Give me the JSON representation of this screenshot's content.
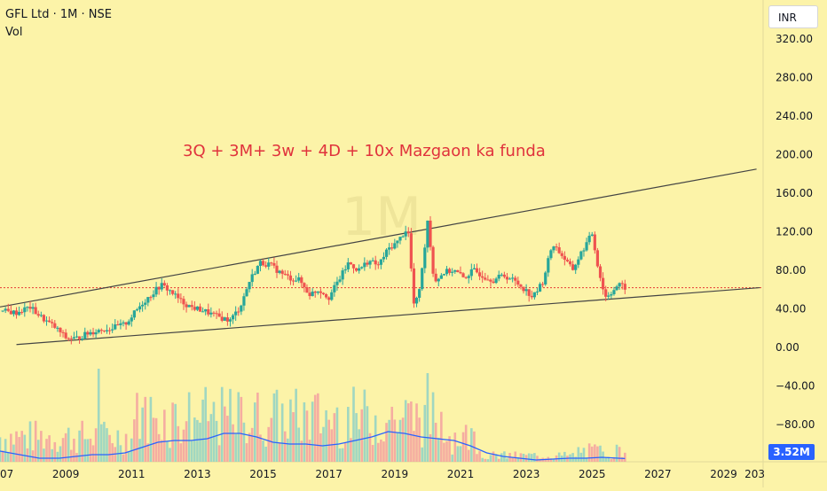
{
  "header": {
    "title": "GFL Ltd · 1M · NSE",
    "vol_label": "Vol",
    "currency": "INR",
    "watermark": "1M"
  },
  "annotation": "3Q + 3M+ 3w + 4D + 10x Mazgaon ka funda",
  "volume_badge": "3.52M",
  "colors": {
    "background": "#fcf3a8",
    "up": "#26a69a",
    "down": "#ef5350",
    "volume_ma": "#2962ff",
    "annotation": "#e0323c",
    "trendline": "#444444",
    "price_line": "#e53935"
  },
  "chart_data": {
    "type": "candlestick",
    "title": "GFL Ltd · 1M · NSE",
    "xlabel": "",
    "ylabel": "",
    "x_ticks": [
      "07",
      "2009",
      "2011",
      "2013",
      "2015",
      "2017",
      "2019",
      "2021",
      "2023",
      "2025",
      "2027",
      "2029",
      "203"
    ],
    "y_ticks": [
      "320.00",
      "280.00",
      "240.00",
      "200.00",
      "160.00",
      "120.00",
      "80.00",
      "40.00",
      "0.00",
      "−40.00",
      "−80.00"
    ],
    "y_range": [
      -100,
      340
    ],
    "x_range": [
      2007.0,
      2030.2
    ],
    "current_price": 62,
    "series_points": [
      [
        2007.0,
        38
      ],
      [
        2007.5,
        36
      ],
      [
        2007.9,
        42
      ],
      [
        2008.3,
        30
      ],
      [
        2008.7,
        20
      ],
      [
        2009.0,
        10
      ],
      [
        2009.3,
        9
      ],
      [
        2009.7,
        15
      ],
      [
        2010.0,
        18
      ],
      [
        2010.4,
        20
      ],
      [
        2010.8,
        24
      ],
      [
        2011.0,
        32
      ],
      [
        2011.3,
        45
      ],
      [
        2011.6,
        55
      ],
      [
        2011.9,
        65
      ],
      [
        2012.2,
        58
      ],
      [
        2012.5,
        48
      ],
      [
        2012.8,
        42
      ],
      [
        2013.2,
        38
      ],
      [
        2013.6,
        32
      ],
      [
        2014.0,
        28
      ],
      [
        2014.3,
        42
      ],
      [
        2014.6,
        70
      ],
      [
        2014.9,
        88
      ],
      [
        2015.2,
        86
      ],
      [
        2015.5,
        78
      ],
      [
        2015.8,
        72
      ],
      [
        2016.1,
        70
      ],
      [
        2016.4,
        55
      ],
      [
        2016.7,
        60
      ],
      [
        2017.0,
        52
      ],
      [
        2017.3,
        70
      ],
      [
        2017.6,
        88
      ],
      [
        2017.9,
        80
      ],
      [
        2018.2,
        90
      ],
      [
        2018.5,
        85
      ],
      [
        2018.8,
        102
      ],
      [
        2019.1,
        110
      ],
      [
        2019.4,
        125
      ],
      [
        2019.6,
        38
      ],
      [
        2019.8,
        70
      ],
      [
        2020.0,
        132
      ],
      [
        2020.2,
        68
      ],
      [
        2020.5,
        78
      ],
      [
        2020.8,
        80
      ],
      [
        2021.1,
        72
      ],
      [
        2021.4,
        80
      ],
      [
        2021.7,
        74
      ],
      [
        2022.0,
        70
      ],
      [
        2022.3,
        75
      ],
      [
        2022.6,
        70
      ],
      [
        2022.9,
        62
      ],
      [
        2023.2,
        52
      ],
      [
        2023.5,
        68
      ],
      [
        2023.8,
        108
      ],
      [
        2024.1,
        95
      ],
      [
        2024.4,
        80
      ],
      [
        2024.7,
        100
      ],
      [
        2025.0,
        118
      ],
      [
        2025.2,
        80
      ],
      [
        2025.4,
        52
      ],
      [
        2025.6,
        58
      ],
      [
        2025.8,
        65
      ],
      [
        2026.0,
        62
      ]
    ],
    "trendlines": [
      {
        "name": "upper",
        "points": [
          [
            2007.0,
            42
          ],
          [
            2030.0,
            185
          ]
        ]
      },
      {
        "name": "lower",
        "points": [
          [
            2007.5,
            3
          ],
          [
            2030.1,
            62
          ]
        ]
      }
    ],
    "volume_ma_points": [
      [
        2007.0,
        0.06
      ],
      [
        2007.6,
        0.04
      ],
      [
        2008.2,
        0.02
      ],
      [
        2008.8,
        0.02
      ],
      [
        2009.3,
        0.03
      ],
      [
        2009.8,
        0.04
      ],
      [
        2010.3,
        0.04
      ],
      [
        2010.8,
        0.05
      ],
      [
        2011.3,
        0.08
      ],
      [
        2011.8,
        0.11
      ],
      [
        2012.3,
        0.12
      ],
      [
        2012.8,
        0.12
      ],
      [
        2013.3,
        0.13
      ],
      [
        2013.8,
        0.16
      ],
      [
        2014.3,
        0.16
      ],
      [
        2014.8,
        0.14
      ],
      [
        2015.3,
        0.11
      ],
      [
        2015.8,
        0.1
      ],
      [
        2016.3,
        0.1
      ],
      [
        2016.8,
        0.09
      ],
      [
        2017.3,
        0.1
      ],
      [
        2017.8,
        0.12
      ],
      [
        2018.3,
        0.14
      ],
      [
        2018.8,
        0.17
      ],
      [
        2019.3,
        0.16
      ],
      [
        2019.8,
        0.14
      ],
      [
        2020.3,
        0.13
      ],
      [
        2020.8,
        0.12
      ],
      [
        2021.3,
        0.09
      ],
      [
        2021.8,
        0.05
      ],
      [
        2022.3,
        0.03
      ],
      [
        2022.8,
        0.02
      ],
      [
        2023.3,
        0.01
      ],
      [
        2023.8,
        0.015
      ],
      [
        2024.3,
        0.02
      ],
      [
        2024.8,
        0.02
      ],
      [
        2025.3,
        0.025
      ],
      [
        2025.8,
        0.02
      ],
      [
        2026.0,
        0.018
      ]
    ]
  }
}
